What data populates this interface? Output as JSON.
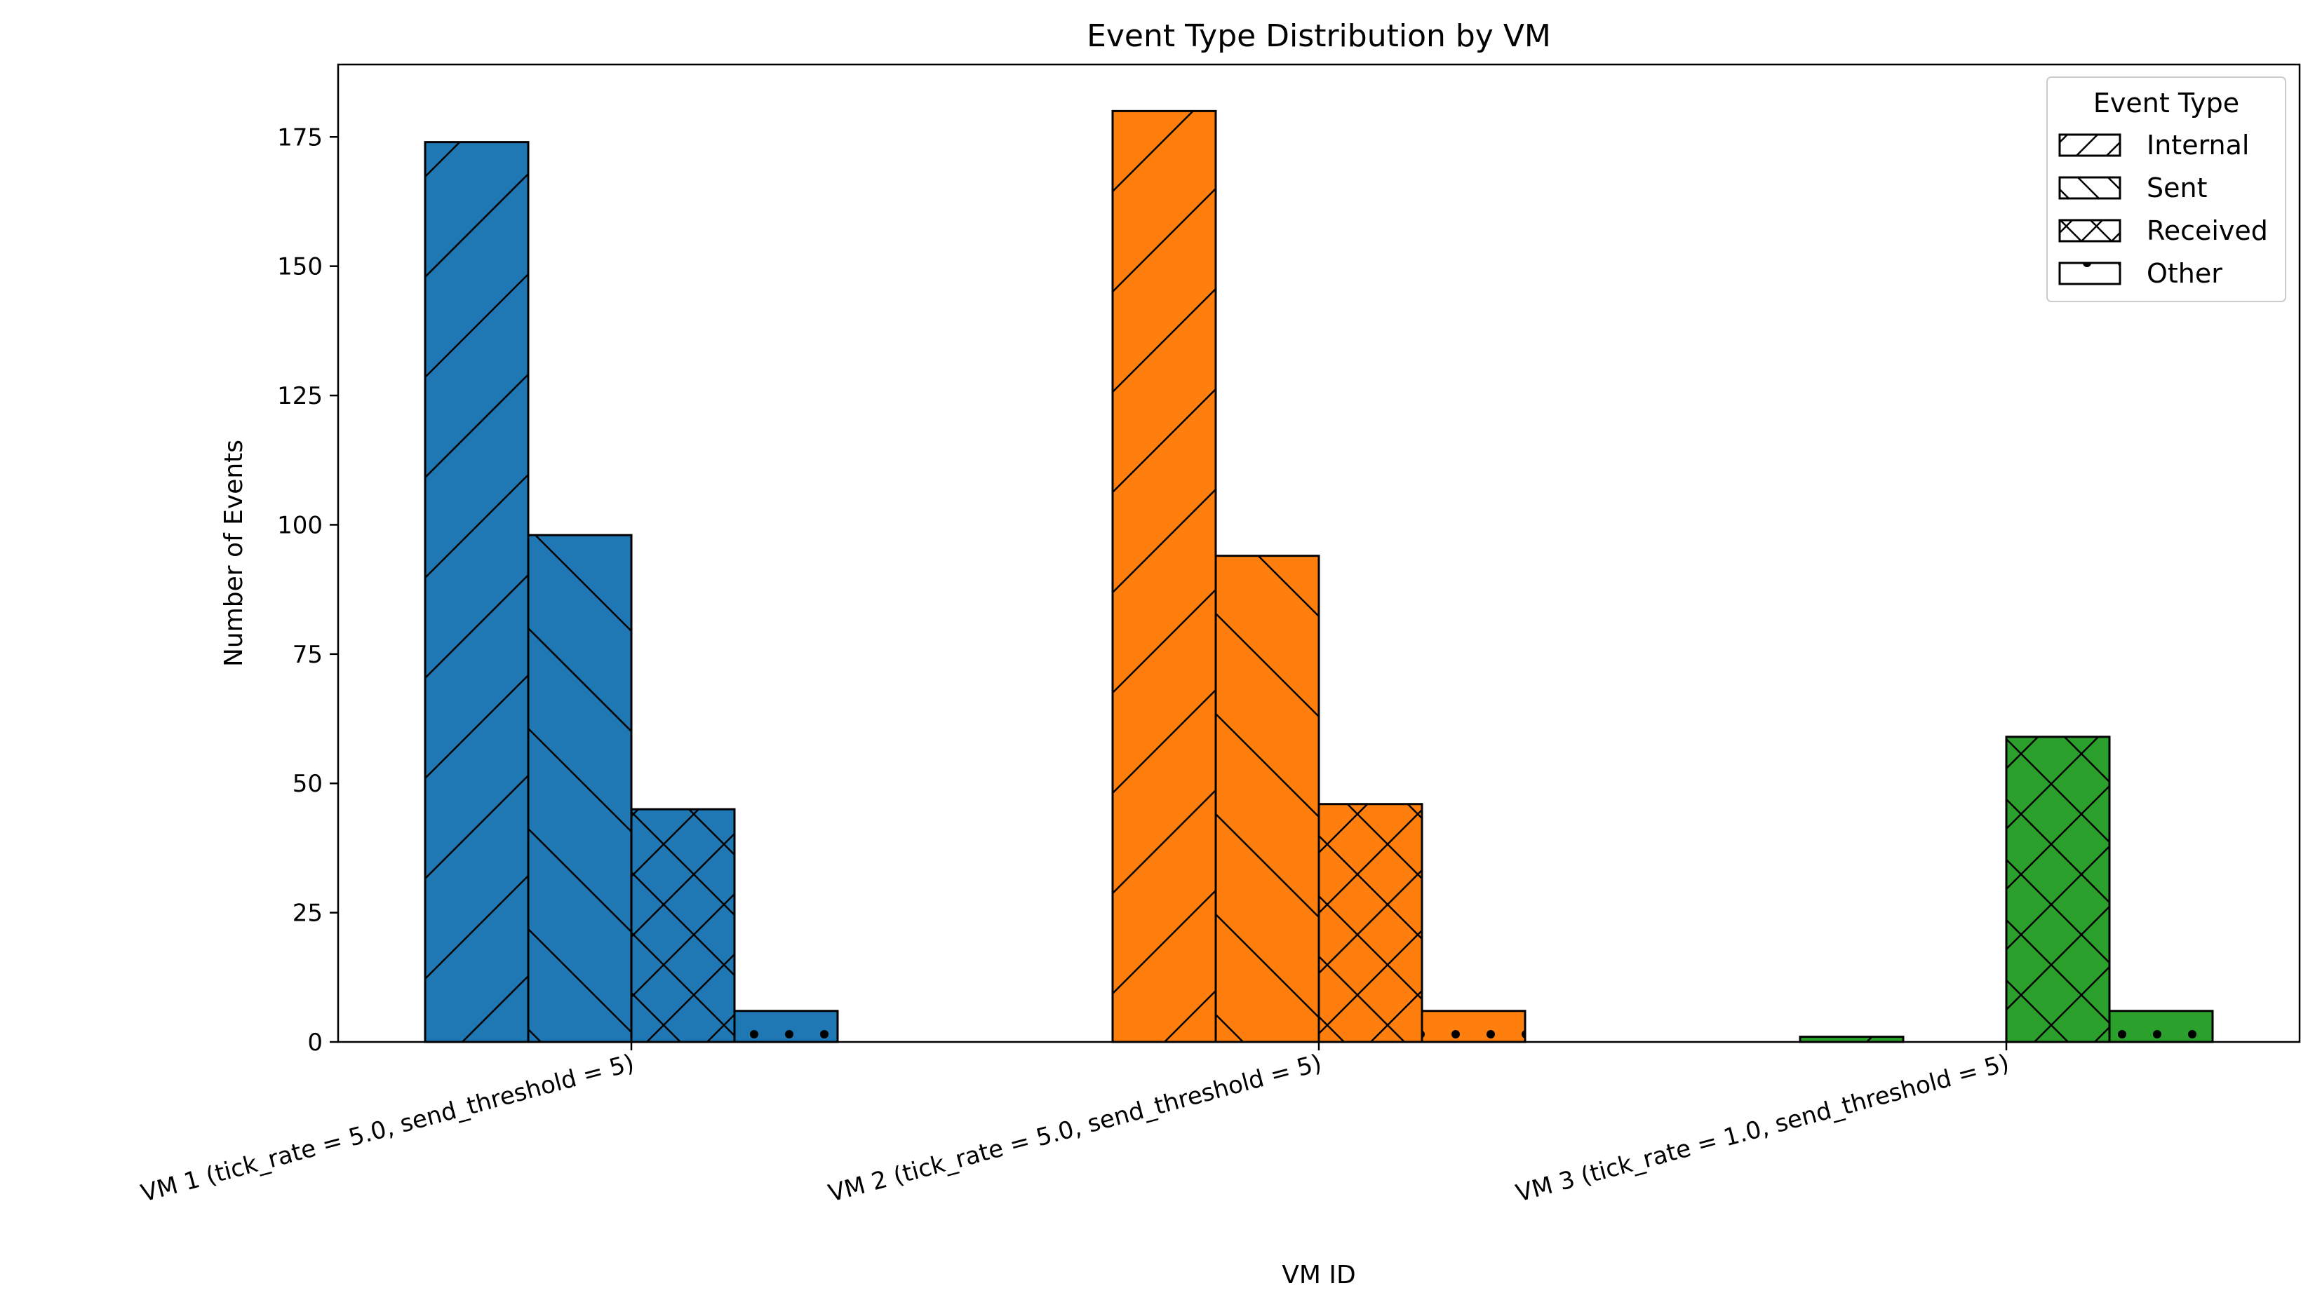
{
  "chart_data": {
    "type": "bar",
    "title": "Event Type Distribution by VM",
    "xlabel": "VM ID",
    "ylabel": "Number of Events",
    "ylim": [
      0,
      189
    ],
    "yticks": [
      0,
      25,
      50,
      75,
      100,
      125,
      150,
      175
    ],
    "grid": false,
    "categories": [
      "VM 1 (tick_rate = 5.0, send_threshold = 5)",
      "VM 2 (tick_rate = 5.0, send_threshold = 5)",
      "VM 3 (tick_rate = 1.0, send_threshold = 5)"
    ],
    "category_colors": [
      "#1f77b4",
      "#ff7f0e",
      "#2ca02c"
    ],
    "series": [
      {
        "name": "Internal",
        "hatch": "forward-diagonal",
        "values": [
          174,
          180,
          1
        ]
      },
      {
        "name": "Sent",
        "hatch": "back-diagonal",
        "values": [
          98,
          94,
          0
        ]
      },
      {
        "name": "Received",
        "hatch": "cross",
        "values": [
          45,
          46,
          59
        ]
      },
      {
        "name": "Other",
        "hatch": "dots",
        "values": [
          6,
          6,
          6
        ]
      }
    ],
    "legend": {
      "title": "Event Type",
      "position": "upper-right"
    }
  }
}
